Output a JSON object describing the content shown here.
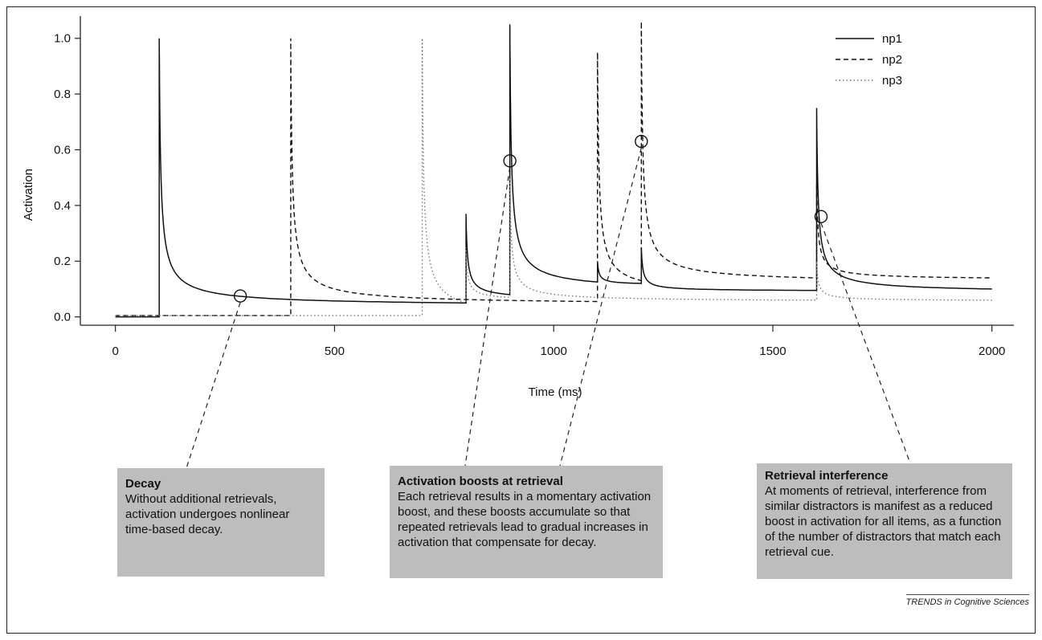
{
  "chart_data": {
    "type": "line",
    "xlabel": "Time (ms)",
    "ylabel": "Activation",
    "xlim": [
      -80,
      2050
    ],
    "ylim": [
      -0.03,
      1.08
    ],
    "x_ticks": [
      0,
      500,
      1000,
      1500,
      2000
    ],
    "x_tick_labels": [
      "0",
      "500",
      "1000",
      "1500",
      "2000"
    ],
    "y_ticks": [
      0.0,
      0.2,
      0.4,
      0.6,
      0.8,
      1.0
    ],
    "y_tick_labels": [
      "0.0",
      "0.2",
      "0.4",
      "0.6",
      "0.8",
      "1.0"
    ],
    "grid": false,
    "legend_position": "top-right",
    "series": [
      {
        "name": "np1",
        "style": "solid",
        "color": "#111111",
        "events": [
          {
            "t": 100,
            "peak": 1.0,
            "base": 0.0,
            "rest": 0.05
          },
          {
            "t": 800,
            "peak": 0.37,
            "base": 0.05,
            "rest": 0.08
          },
          {
            "t": 900,
            "peak": 1.05,
            "base": 0.08,
            "rest": 0.125
          },
          {
            "t": 1100,
            "peak": 0.2,
            "base": 0.125,
            "rest": 0.12
          },
          {
            "t": 1200,
            "peak": 0.25,
            "base": 0.12,
            "rest": 0.095
          },
          {
            "t": 1600,
            "peak": 0.75,
            "base": 0.095,
            "rest": 0.1
          }
        ]
      },
      {
        "name": "np2",
        "style": "dashed",
        "color": "#111111",
        "events": [
          {
            "t": 400,
            "peak": 1.0,
            "base": 0.005,
            "rest": 0.055
          },
          {
            "t": 1100,
            "peak": 0.95,
            "base": 0.07,
            "rest": 0.13
          },
          {
            "t": 1200,
            "peak": 1.06,
            "base": 0.13,
            "rest": 0.14
          },
          {
            "t": 1600,
            "peak": 0.48,
            "base": 0.14,
            "rest": 0.14
          }
        ]
      },
      {
        "name": "np3",
        "style": "dotted",
        "color": "#777777",
        "events": [
          {
            "t": 700,
            "peak": 1.0,
            "base": 0.005,
            "rest": 0.05
          },
          {
            "t": 800,
            "peak": 0.25,
            "base": 0.05,
            "rest": 0.07
          },
          {
            "t": 900,
            "peak": 0.5,
            "base": 0.07,
            "rest": 0.06
          },
          {
            "t": 1600,
            "peak": 0.2,
            "base": 0.06,
            "rest": 0.06
          }
        ]
      }
    ],
    "markers": [
      {
        "x": 285,
        "y": 0.075
      },
      {
        "x": 900,
        "y": 0.56
      },
      {
        "x": 1200,
        "y": 0.63
      },
      {
        "x": 1610,
        "y": 0.36
      }
    ]
  },
  "annotations": [
    {
      "title": "Decay",
      "text": "Without additional retrievals, activation undergoes nonlinear time-based decay."
    },
    {
      "title": "Activation boosts at retrieval",
      "text": "Each retrieval results in a momentary activation boost, and these boosts accumulate so that repeated retrievals lead to gradual increases in activation that compensate for decay."
    },
    {
      "title": "Retrieval interference",
      "text": "At moments of retrieval, interference from similar distractors is manifest as a reduced boost in activation for all items, as a function of the number of distractors that match each retrieval cue."
    }
  ],
  "footer": "TRENDS in Cognitive Sciences"
}
